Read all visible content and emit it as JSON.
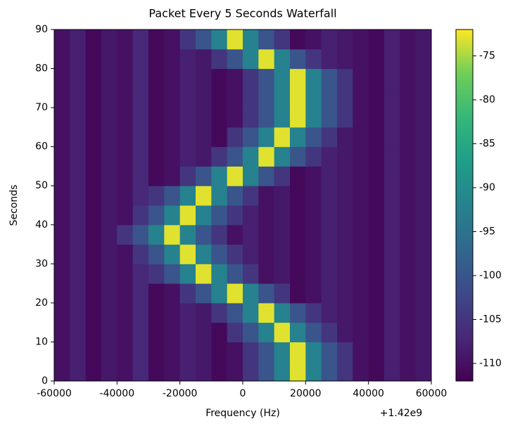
{
  "chart_data": {
    "type": "heatmap",
    "title": "Packet Every 5 Seconds Waterfall",
    "xlabel": "Frequency (Hz)",
    "ylabel": "Seconds",
    "x_offset_label": "+1.42e9",
    "colormap": "viridis",
    "x_edges": [
      -60000,
      -55000,
      -50000,
      -45000,
      -40000,
      -35000,
      -30000,
      -25000,
      -20000,
      -15000,
      -10000,
      -5000,
      0,
      5000,
      10000,
      15000,
      20000,
      25000,
      30000,
      35000,
      40000,
      45000,
      50000,
      55000,
      60000
    ],
    "y_edges": [
      0,
      5,
      10,
      15,
      20,
      25,
      30,
      35,
      40,
      45,
      50,
      55,
      60,
      65,
      70,
      75,
      80,
      85,
      90
    ],
    "z": [
      [
        -110,
        -108,
        -111,
        -109,
        -110,
        -107,
        -111,
        -110,
        -108,
        -109,
        -111,
        -110,
        -105,
        -100,
        -92,
        -73,
        -92,
        -100,
        -105,
        -110,
        -111,
        -108,
        -110,
        -109
      ],
      [
        -110,
        -108,
        -111,
        -109,
        -110,
        -107,
        -111,
        -110,
        -108,
        -109,
        -111,
        -110,
        -105,
        -100,
        -92,
        -73,
        -92,
        -100,
        -105,
        -110,
        -111,
        -108,
        -110,
        -109
      ],
      [
        -110,
        -108,
        -111,
        -109,
        -110,
        -107,
        -111,
        -110,
        -108,
        -109,
        -111,
        -105,
        -100,
        -92,
        -73,
        -92,
        -100,
        -105,
        -109,
        -110,
        -111,
        -108,
        -110,
        -109
      ],
      [
        -110,
        -108,
        -111,
        -109,
        -110,
        -107,
        -111,
        -110,
        -108,
        -109,
        -105,
        -100,
        -92,
        -73,
        -92,
        -100,
        -105,
        -108,
        -109,
        -110,
        -111,
        -108,
        -110,
        -109
      ],
      [
        -110,
        -108,
        -111,
        -109,
        -110,
        -107,
        -111,
        -110,
        -105,
        -100,
        -92,
        -73,
        -92,
        -100,
        -105,
        -111,
        -110,
        -108,
        -109,
        -110,
        -111,
        -108,
        -110,
        -109
      ],
      [
        -110,
        -108,
        -111,
        -109,
        -110,
        -107,
        -105,
        -100,
        -92,
        -73,
        -92,
        -100,
        -105,
        -110,
        -109,
        -111,
        -110,
        -108,
        -109,
        -110,
        -111,
        -108,
        -110,
        -109
      ],
      [
        -110,
        -108,
        -111,
        -109,
        -110,
        -105,
        -100,
        -92,
        -73,
        -92,
        -100,
        -105,
        -108,
        -110,
        -109,
        -111,
        -110,
        -108,
        -109,
        -110,
        -111,
        -108,
        -110,
        -109
      ],
      [
        -110,
        -108,
        -111,
        -109,
        -105,
        -100,
        -92,
        -73,
        -92,
        -100,
        -105,
        -110,
        -108,
        -110,
        -109,
        -111,
        -110,
        -108,
        -109,
        -110,
        -111,
        -108,
        -110,
        -109
      ],
      [
        -110,
        -108,
        -111,
        -109,
        -110,
        -105,
        -100,
        -92,
        -73,
        -92,
        -100,
        -105,
        -108,
        -110,
        -109,
        -111,
        -110,
        -108,
        -109,
        -110,
        -111,
        -108,
        -110,
        -109
      ],
      [
        -110,
        -108,
        -111,
        -109,
        -110,
        -107,
        -105,
        -100,
        -92,
        -73,
        -92,
        -100,
        -105,
        -110,
        -109,
        -111,
        -110,
        -108,
        -109,
        -110,
        -111,
        -108,
        -110,
        -109
      ],
      [
        -110,
        -108,
        -111,
        -109,
        -110,
        -107,
        -111,
        -110,
        -105,
        -100,
        -92,
        -73,
        -92,
        -100,
        -105,
        -111,
        -110,
        -108,
        -109,
        -110,
        -111,
        -108,
        -110,
        -109
      ],
      [
        -110,
        -108,
        -111,
        -109,
        -110,
        -107,
        -111,
        -110,
        -108,
        -109,
        -105,
        -100,
        -92,
        -73,
        -92,
        -100,
        -105,
        -108,
        -109,
        -110,
        -111,
        -108,
        -110,
        -109
      ],
      [
        -110,
        -108,
        -111,
        -109,
        -110,
        -107,
        -111,
        -110,
        -108,
        -109,
        -111,
        -105,
        -100,
        -92,
        -73,
        -92,
        -100,
        -105,
        -109,
        -110,
        -111,
        -108,
        -110,
        -109
      ],
      [
        -110,
        -108,
        -111,
        -109,
        -110,
        -107,
        -111,
        -110,
        -108,
        -109,
        -111,
        -110,
        -105,
        -100,
        -92,
        -73,
        -92,
        -100,
        -105,
        -110,
        -111,
        -108,
        -110,
        -109
      ],
      [
        -110,
        -108,
        -111,
        -109,
        -110,
        -107,
        -111,
        -110,
        -108,
        -109,
        -111,
        -110,
        -105,
        -100,
        -92,
        -73,
        -92,
        -100,
        -105,
        -110,
        -111,
        -108,
        -110,
        -109
      ],
      [
        -110,
        -108,
        -111,
        -109,
        -110,
        -107,
        -111,
        -110,
        -108,
        -109,
        -111,
        -110,
        -105,
        -100,
        -92,
        -73,
        -92,
        -100,
        -105,
        -110,
        -111,
        -108,
        -110,
        -109
      ],
      [
        -110,
        -108,
        -111,
        -109,
        -110,
        -107,
        -111,
        -110,
        -108,
        -109,
        -105,
        -100,
        -92,
        -73,
        -92,
        -100,
        -105,
        -108,
        -109,
        -110,
        -111,
        -108,
        -110,
        -109
      ],
      [
        -110,
        -108,
        -111,
        -109,
        -110,
        -107,
        -111,
        -110,
        -105,
        -100,
        -92,
        -73,
        -92,
        -100,
        -105,
        -111,
        -110,
        -108,
        -109,
        -110,
        -111,
        -108,
        -110,
        -109
      ]
    ],
    "xlim": [
      -60000,
      60000
    ],
    "ylim": [
      0,
      90
    ],
    "zlim": [
      -112,
      -72
    ],
    "xticks": [
      -60000,
      -40000,
      -20000,
      0,
      20000,
      40000,
      60000
    ],
    "yticks": [
      0,
      10,
      20,
      30,
      40,
      50,
      60,
      70,
      80,
      90
    ],
    "zticks": [
      -110,
      -105,
      -100,
      -95,
      -90,
      -85,
      -80,
      -75
    ]
  }
}
